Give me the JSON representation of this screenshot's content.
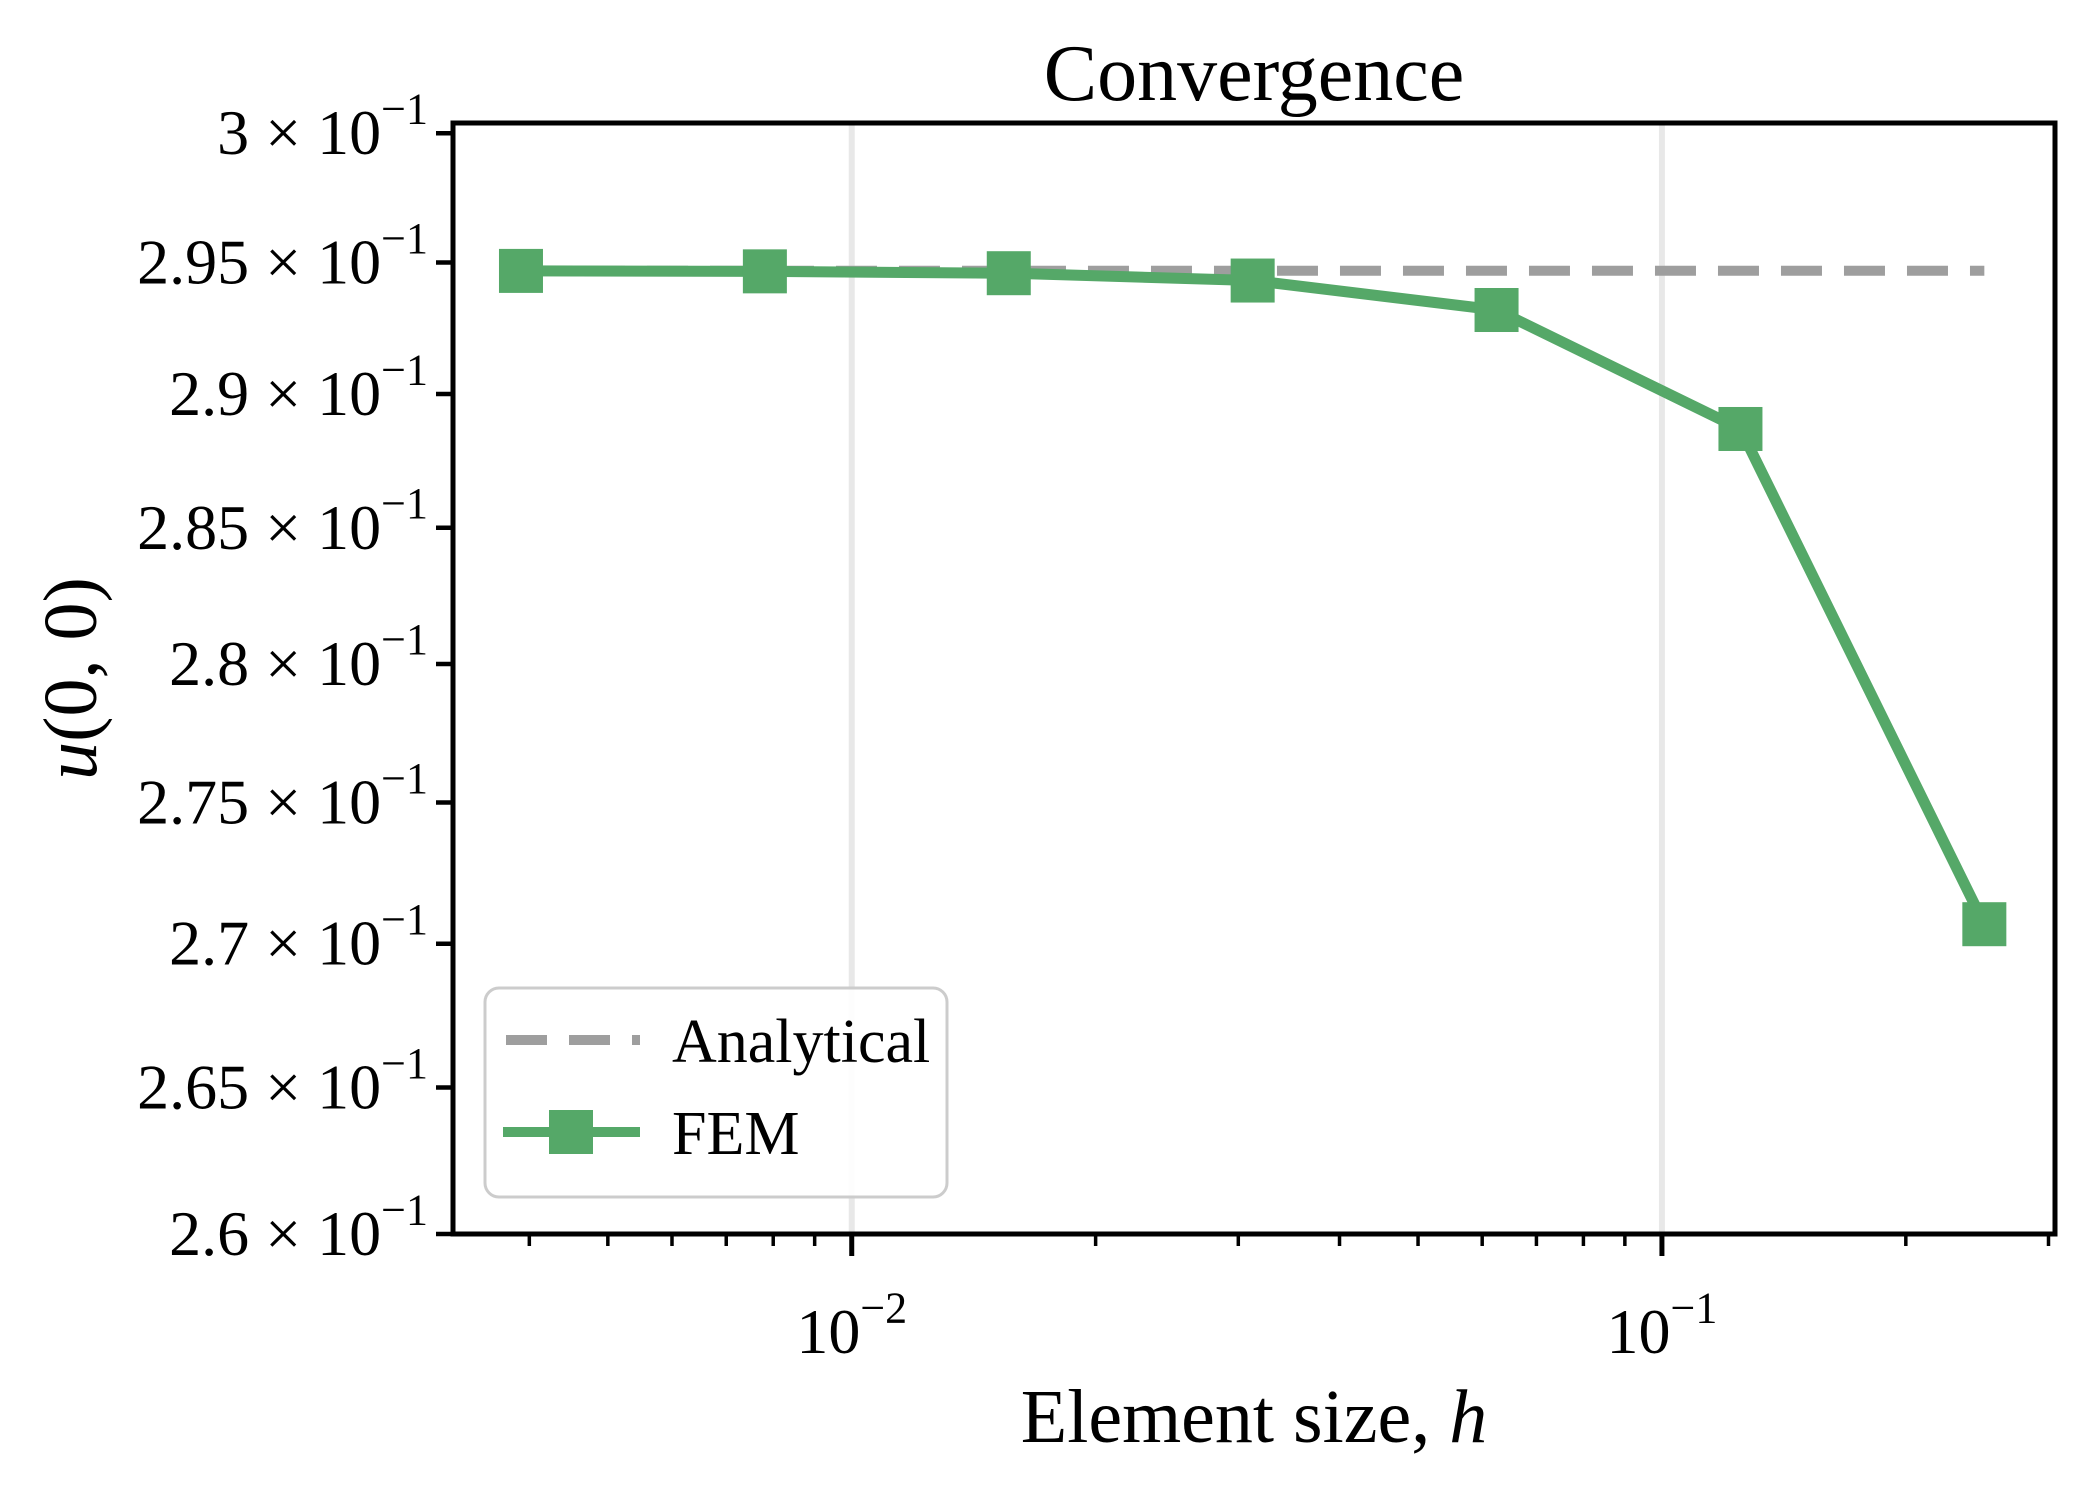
{
  "chart_data": {
    "type": "line",
    "title": "Convergence",
    "xlabel": "Element size, h",
    "xlabel_parts": {
      "text": "Element size, ",
      "italic": "h"
    },
    "ylabel": "u(0, 0)",
    "ylabel_parts": {
      "italic": "u",
      "text": "(0, 0)"
    },
    "xscale": "log",
    "yscale": "log",
    "xlim": [
      0.00322,
      0.3056
    ],
    "ylim": [
      0.26,
      0.3004
    ],
    "x": [
      0.00390625,
      0.0078125,
      0.015625,
      0.03125,
      0.0625,
      0.125,
      0.25
    ],
    "series": [
      {
        "name": "Analytical",
        "style": "dashed",
        "color": "#9E9E9E",
        "constant_value": 0.294685,
        "values": [
          0.294685,
          0.294685,
          0.294685,
          0.294685,
          0.294685,
          0.294685,
          0.294685
        ]
      },
      {
        "name": "FEM",
        "style": "solid",
        "marker": "square",
        "color": "#55A868",
        "values": [
          0.294679,
          0.294662,
          0.294591,
          0.29431,
          0.293185,
          0.288685,
          0.270685
        ]
      }
    ],
    "x_major_ticks": [
      {
        "value": 0.01,
        "base": "10",
        "exponent": "−2"
      },
      {
        "value": 0.1,
        "base": "10",
        "exponent": "−1"
      }
    ],
    "x_minor_ticks": [
      0.004,
      0.005,
      0.006,
      0.007,
      0.008,
      0.009,
      0.02,
      0.03,
      0.04,
      0.05,
      0.06,
      0.07,
      0.08,
      0.09,
      0.2,
      0.3
    ],
    "y_ticks": [
      {
        "value": 0.3,
        "mantissa": "3"
      },
      {
        "value": 0.295,
        "mantissa": "2.95"
      },
      {
        "value": 0.29,
        "mantissa": "2.9"
      },
      {
        "value": 0.285,
        "mantissa": "2.85"
      },
      {
        "value": 0.28,
        "mantissa": "2.8"
      },
      {
        "value": 0.275,
        "mantissa": "2.75"
      },
      {
        "value": 0.27,
        "mantissa": "2.7"
      },
      {
        "value": 0.265,
        "mantissa": "2.65"
      },
      {
        "value": 0.26,
        "mantissa": "2.6"
      }
    ],
    "y_tick_times": " × ",
    "y_tick_base": "10",
    "y_tick_exponent": "−1",
    "grid": {
      "axis": "x",
      "which": "major",
      "color": "#E8E8E8"
    },
    "legend": {
      "position": "lower left",
      "entries": [
        {
          "label": "Analytical",
          "color": "#9E9E9E",
          "style": "dashed"
        },
        {
          "label": "FEM",
          "color": "#55A868",
          "style": "solid-square"
        }
      ]
    },
    "colors": {
      "fem": "#55A868",
      "analytical": "#9E9E9E",
      "grid": "#E8E8E8",
      "spine": "#000000",
      "text": "#000000",
      "legend_border": "#CCCCCC",
      "background": "#FFFFFF"
    }
  }
}
